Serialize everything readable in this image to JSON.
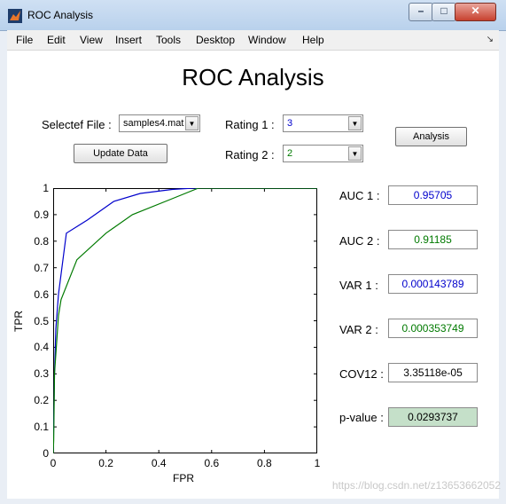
{
  "window": {
    "title": "ROC Analysis",
    "minimize": "–",
    "maximize": "□",
    "close": "✕",
    "app_icon": "matlab-icon"
  },
  "menu": {
    "items": [
      "File",
      "Edit",
      "View",
      "Insert",
      "Tools",
      "Desktop",
      "Window",
      "Help"
    ],
    "arrow": "↘"
  },
  "heading": "ROC Analysis",
  "file_select": {
    "label": "Selectef File :",
    "value": "samples4.mat"
  },
  "update_button": "Update Data",
  "rating1": {
    "label": "Rating 1 :",
    "value": "3"
  },
  "rating2": {
    "label": "Rating 2 :",
    "value": "2"
  },
  "analysis_button": "Analysis",
  "results": [
    {
      "label": "AUC 1 :",
      "value": "0.95705",
      "color": "#0000cc",
      "bg": "#ffffff"
    },
    {
      "label": "AUC 2 :",
      "value": "0.91185",
      "color": "#007a00",
      "bg": "#ffffff"
    },
    {
      "label": "VAR 1 :",
      "value": "0.000143789",
      "color": "#0000cc",
      "bg": "#ffffff"
    },
    {
      "label": "VAR 2 :",
      "value": "0.000353749",
      "color": "#007a00",
      "bg": "#ffffff"
    },
    {
      "label": "COV12 :",
      "value": "3.35118e-05",
      "color": "#000000",
      "bg": "#ffffff"
    },
    {
      "label": "p-value :",
      "value": "0.0293737",
      "color": "#000000",
      "bg": "#c5e0c9"
    }
  ],
  "watermark": "https://blog.csdn.net/z13653662052",
  "chart_data": {
    "type": "line",
    "xlabel": "FPR",
    "ylabel": "TPR",
    "xlim": [
      0,
      1
    ],
    "ylim": [
      0,
      1
    ],
    "xticks": [
      "0",
      "0.2",
      "0.4",
      "0.6",
      "0.8",
      "1"
    ],
    "yticks": [
      "0",
      "0.1",
      "0.2",
      "0.3",
      "0.4",
      "0.5",
      "0.6",
      "0.7",
      "0.8",
      "0.9",
      "1"
    ],
    "grid": false,
    "series": [
      {
        "color": "#0000cc",
        "x": [
          0,
          0.005,
          0.01,
          0.02,
          0.05,
          0.13,
          0.23,
          0.33,
          0.45,
          0.53,
          1.0
        ],
        "y": [
          0,
          0.3,
          0.47,
          0.6,
          0.83,
          0.88,
          0.95,
          0.98,
          0.995,
          1.0,
          1.0
        ]
      },
      {
        "color": "#007a00",
        "x": [
          0,
          0.002,
          0.005,
          0.02,
          0.03,
          0.09,
          0.2,
          0.3,
          0.45,
          0.55,
          1.0
        ],
        "y": [
          0,
          0.05,
          0.3,
          0.52,
          0.58,
          0.73,
          0.83,
          0.9,
          0.96,
          1.0,
          1.0
        ]
      }
    ]
  }
}
